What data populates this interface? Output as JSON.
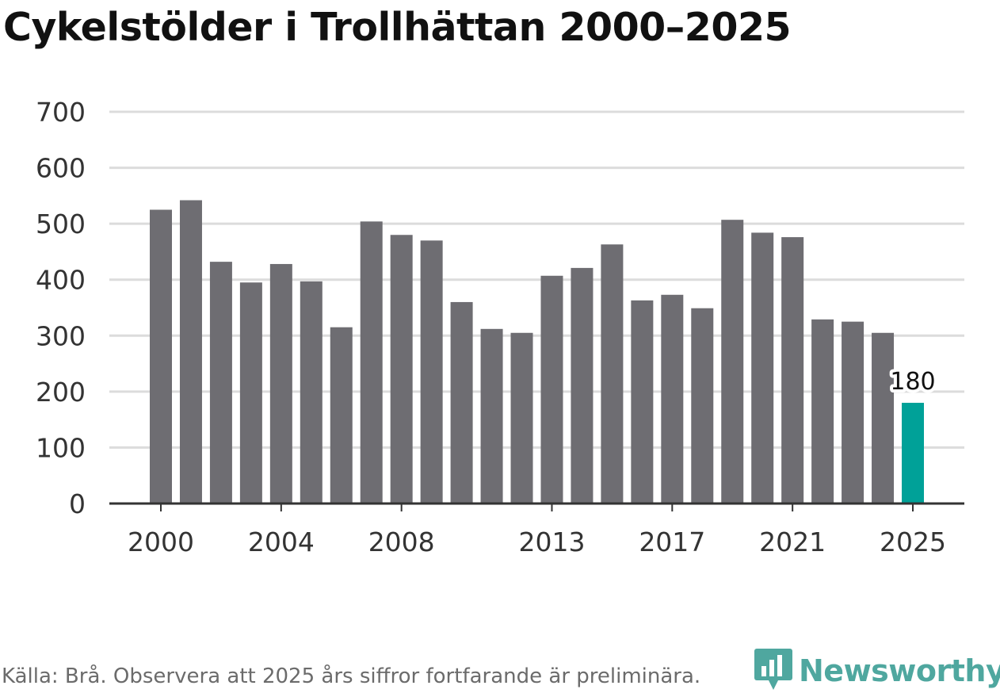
{
  "title": "Cykelstölder i Trollhättan 2000–2025",
  "source": "Källa: Brå. Observera att 2025 års siffror fortfarande är preliminära.",
  "brand": {
    "name": "Newsworthy",
    "icon": "newsworthy-logo-icon",
    "color": "#4fa79f"
  },
  "colors": {
    "bar": "#6e6d72",
    "highlight": "#00a198",
    "grid": "#dcdcdc",
    "axis": "#333333",
    "text": "#333333"
  },
  "chart_data": {
    "type": "bar",
    "title": "Cykelstölder i Trollhättan 2000–2025",
    "xlabel": "",
    "ylabel": "",
    "ylim": [
      0,
      700
    ],
    "yticks": [
      0,
      100,
      200,
      300,
      400,
      500,
      600,
      700
    ],
    "xticks": [
      2000,
      2004,
      2008,
      2013,
      2017,
      2021,
      2025
    ],
    "categories": [
      2000,
      2001,
      2002,
      2003,
      2004,
      2005,
      2006,
      2007,
      2008,
      2009,
      2010,
      2011,
      2012,
      2013,
      2014,
      2015,
      2016,
      2017,
      2018,
      2019,
      2020,
      2021,
      2022,
      2023,
      2024,
      2025
    ],
    "values": [
      525,
      542,
      432,
      395,
      428,
      397,
      315,
      504,
      480,
      470,
      360,
      312,
      305,
      407,
      421,
      463,
      363,
      373,
      349,
      507,
      484,
      476,
      329,
      325,
      305,
      180
    ],
    "highlight": {
      "category": 2025,
      "label": "180"
    }
  }
}
